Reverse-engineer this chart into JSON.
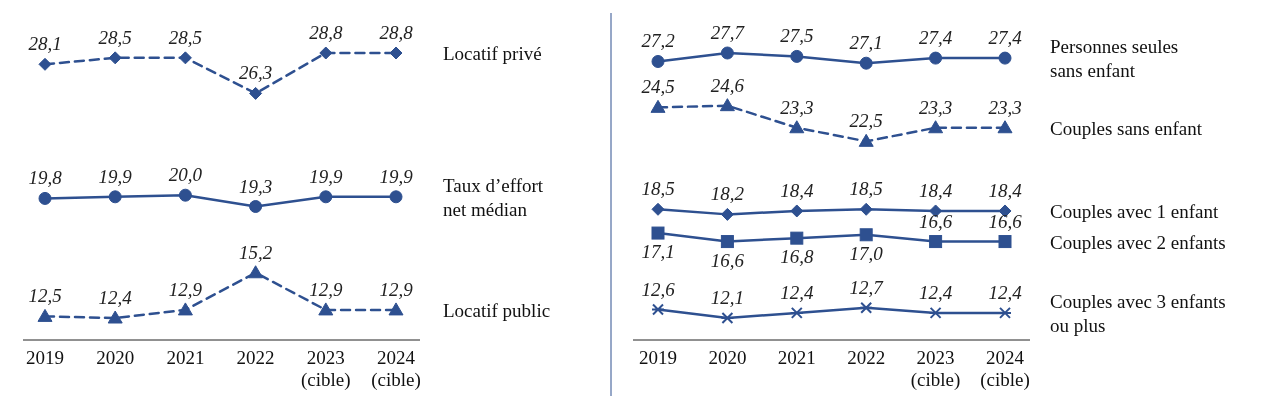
{
  "chart_data": [
    {
      "type": "line",
      "categories": [
        "2019",
        "2020",
        "2021",
        "2022",
        "2023\n(cible)",
        "2024\n(cible)"
      ],
      "tick_labels": "x",
      "series": [
        {
          "name": "Locatif privé",
          "color": "#2e5090",
          "marker": "diamond",
          "line_style": "dashed",
          "values": [
            28.1,
            28.5,
            28.5,
            26.3,
            28.8,
            28.8
          ],
          "value_labels": [
            "28,1",
            "28,5",
            "28,5",
            "26,3",
            "28,8",
            "28,8"
          ]
        },
        {
          "name": "Taux d’effort\nnet médian",
          "color": "#2e5090",
          "marker": "circle",
          "line_style": "solid",
          "values": [
            19.8,
            19.9,
            20.0,
            19.3,
            19.9,
            19.9
          ],
          "value_labels": [
            "19,8",
            "19,9",
            "20,0",
            "19,3",
            "19,9",
            "19,9"
          ]
        },
        {
          "name": "Locatif public",
          "color": "#2e5090",
          "marker": "triangle",
          "line_style": "dashed",
          "values": [
            12.5,
            12.4,
            12.9,
            15.2,
            12.9,
            12.9
          ],
          "value_labels": [
            "12,5",
            "12,4",
            "12,9",
            "15,2",
            "12,9",
            "12,9"
          ]
        }
      ]
    },
    {
      "type": "line",
      "categories": [
        "2019",
        "2020",
        "2021",
        "2022",
        "2023\n(cible)",
        "2024\n(cible)"
      ],
      "tick_labels": "x",
      "series": [
        {
          "name": "Personnes seules\nsans enfant",
          "color": "#2e5090",
          "marker": "circle",
          "line_style": "solid",
          "values": [
            27.2,
            27.7,
            27.5,
            27.1,
            27.4,
            27.4
          ],
          "value_labels": [
            "27,2",
            "27,7",
            "27,5",
            "27,1",
            "27,4",
            "27,4"
          ]
        },
        {
          "name": "Couples sans enfant",
          "color": "#2e5090",
          "marker": "triangle",
          "line_style": "dashed",
          "values": [
            24.5,
            24.6,
            23.3,
            22.5,
            23.3,
            23.3
          ],
          "value_labels": [
            "24,5",
            "24,6",
            "23,3",
            "22,5",
            "23,3",
            "23,3"
          ]
        },
        {
          "name": "Couples avec 1 enfant",
          "color": "#2e5090",
          "marker": "diamond",
          "line_style": "solid",
          "values": [
            18.5,
            18.2,
            18.4,
            18.5,
            18.4,
            18.4
          ],
          "value_labels": [
            "18,5",
            "18,2",
            "18,4",
            "18,5",
            "18,4",
            "18,4"
          ]
        },
        {
          "name": "Couples avec 2 enfants",
          "color": "#2e5090",
          "marker": "square",
          "line_style": "solid",
          "values": [
            17.1,
            16.6,
            16.8,
            17.0,
            16.6,
            16.6
          ],
          "value_labels": [
            "17,1",
            "16,6",
            "16,8",
            "17,0",
            "16,6",
            "16,6"
          ]
        },
        {
          "name": "Couples avec 3 enfants\nou plus",
          "color": "#2e5090",
          "marker": "cross",
          "line_style": "solid",
          "values": [
            12.6,
            12.1,
            12.4,
            12.7,
            12.4,
            12.4
          ],
          "value_labels": [
            "12,6",
            "12,1",
            "12,4",
            "12,7",
            "12,4",
            "12,4"
          ]
        }
      ]
    }
  ]
}
